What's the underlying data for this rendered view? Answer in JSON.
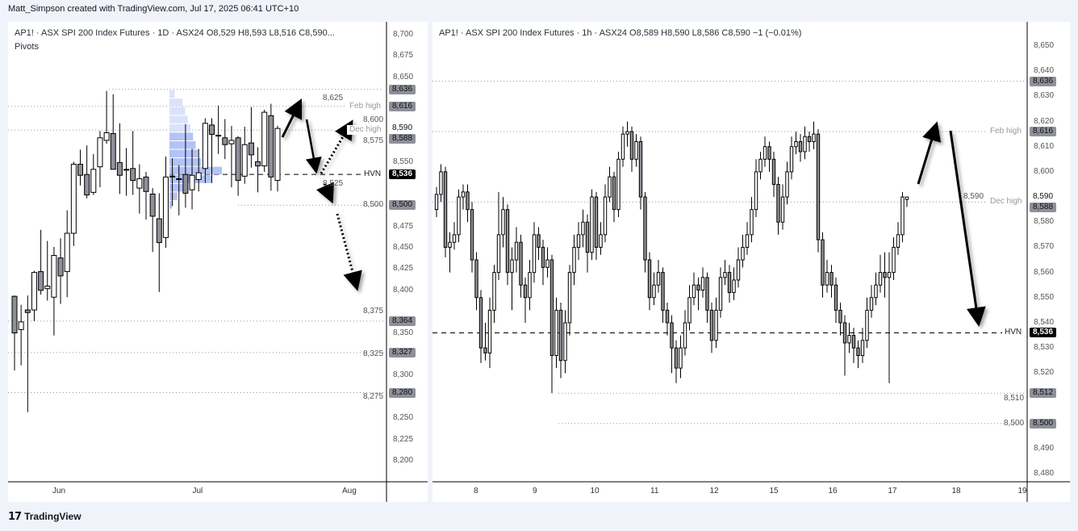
{
  "credit": "Matt_Simpson created with TradingView.com, Jul 17, 2025 06:41 UTC+10",
  "footer": {
    "brand": "TradingView",
    "logo_icon": "tradingview-logo-icon"
  },
  "colors": {
    "up_fill": "#ffffff",
    "down_fill": "#8e9099",
    "candle_border": "#000000",
    "profile_light": "#d6e0fb",
    "profile_dark": "#aabdf5",
    "level_line": "#9598a1",
    "tag_gray": "#8e9099",
    "tag_black": "#000000"
  },
  "chart_data": [
    {
      "type": "candlestick",
      "legend": "AP1! · ASX SPI 200 Index Futures · 1D · ASX24  O8,529  H8,593  L8,516  C8,590...",
      "indicator": "Pivots",
      "ylim": [
        8200,
        8700
      ],
      "yticks": [
        8200,
        8225,
        8250,
        8275,
        8300,
        8325,
        8350,
        8375,
        8400,
        8425,
        8450,
        8475,
        8500,
        8525,
        8550,
        8575,
        8600,
        8625,
        8650,
        8675,
        8700
      ],
      "xticks": [
        "Jun",
        "Jul",
        "Aug"
      ],
      "candles": [
        [
          8393,
          8394,
          8306,
          8350
        ],
        [
          8354,
          8383,
          8312,
          8363
        ],
        [
          8377,
          8394,
          8257,
          8374
        ],
        [
          8377,
          8423,
          8364,
          8421
        ],
        [
          8422,
          8471,
          8395,
          8400
        ],
        [
          8402,
          8458,
          8388,
          8405
        ],
        [
          8392,
          8451,
          8347,
          8441
        ],
        [
          8438,
          8461,
          8384,
          8417
        ],
        [
          8422,
          8494,
          8392,
          8467
        ],
        [
          8467,
          8551,
          8452,
          8548
        ],
        [
          8548,
          8565,
          8523,
          8535
        ],
        [
          8536,
          8570,
          8508,
          8512
        ],
        [
          8515,
          8560,
          8512,
          8542
        ],
        [
          8545,
          8587,
          8521,
          8579
        ],
        [
          8576,
          8634,
          8572,
          8585
        ],
        [
          8584,
          8630,
          8542,
          8542
        ],
        [
          8550,
          8596,
          8513,
          8535
        ],
        [
          8542,
          8567,
          8511,
          8542
        ],
        [
          8543,
          8587,
          8512,
          8529
        ],
        [
          8520,
          8548,
          8490,
          8531
        ],
        [
          8533,
          8539,
          8483,
          8516
        ],
        [
          8513,
          8520,
          8445,
          8487
        ],
        [
          8484,
          8514,
          8398,
          8456
        ],
        [
          8462,
          8557,
          8450,
          8533
        ],
        [
          8534,
          8555,
          8499,
          8534
        ],
        [
          8531,
          8547,
          8488,
          8531
        ],
        [
          8536,
          8595,
          8497,
          8514
        ],
        [
          8518,
          8566,
          8495,
          8535
        ],
        [
          8530,
          8566,
          8516,
          8538
        ],
        [
          8543,
          8602,
          8526,
          8596
        ],
        [
          8594,
          8602,
          8526,
          8583
        ],
        [
          8582,
          8617,
          8560,
          8582
        ],
        [
          8579,
          8601,
          8554,
          8571
        ],
        [
          8572,
          8593,
          8521,
          8576
        ],
        [
          8579,
          8581,
          8511,
          8529
        ],
        [
          8534,
          8592,
          8525,
          8571
        ],
        [
          8573,
          8615,
          8544,
          8559
        ],
        [
          8551,
          8568,
          8515,
          8546
        ],
        [
          8546,
          8612,
          8539,
          8609
        ],
        [
          8605,
          8619,
          8517,
          8533
        ],
        [
          8529,
          8593,
          8516,
          8590
        ]
      ],
      "volume_profile": {
        "prices": [
          8630,
          8620,
          8610,
          8600,
          8590,
          8580,
          8570,
          8560,
          8550,
          8540,
          8530,
          8520,
          8510,
          8500
        ],
        "relative_volume": [
          0.1,
          0.25,
          0.3,
          0.35,
          0.4,
          0.45,
          0.5,
          0.55,
          0.6,
          1.0,
          0.8,
          0.3,
          0.15,
          0.05
        ]
      },
      "levels": [
        {
          "price": 8636,
          "tag": "8,636",
          "style": "dotted",
          "tag_style": "gray"
        },
        {
          "price": 8616,
          "tag": "8,616",
          "label": "Feb high",
          "style": "dotted",
          "tag_style": "gray"
        },
        {
          "price": 8588,
          "tag": "8,588",
          "label": "Dec high",
          "style": "dotted",
          "tag_style": "gray"
        },
        {
          "price": 8536,
          "tag": "8,536",
          "label": "HVN",
          "style": "dashed",
          "tag_style": "black"
        },
        {
          "price": 8500,
          "tag": "8,500",
          "style": "dotted",
          "tag_style": "gray"
        },
        {
          "price": 8364,
          "tag": "8,364",
          "style": "dotted",
          "tag_style": "gray"
        },
        {
          "price": 8327,
          "tag": "8,327",
          "style": "dotted",
          "tag_style": "gray"
        },
        {
          "price": 8280,
          "tag": "8,280",
          "style": "dotted",
          "tag_style": "gray"
        }
      ],
      "last_price": {
        "price": 8590,
        "tag": "8,590"
      }
    },
    {
      "type": "candlestick",
      "legend": "AP1! · ASX SPI 200 Index Futures · 1h · ASX24  O8,589  H8,590  L8,586  C8,590  −1 (−0.01%)",
      "ylim": [
        8475,
        8655
      ],
      "yticks": [
        8480,
        8490,
        8500,
        8510,
        8520,
        8530,
        8540,
        8550,
        8560,
        8570,
        8580,
        8590,
        8600,
        8610,
        8620,
        8630,
        8640,
        8650
      ],
      "xticks": [
        "8",
        "9",
        "10",
        "11",
        "12",
        "15",
        "16",
        "17",
        "18",
        "19"
      ],
      "candles": [
        [
          8585,
          8594,
          8582,
          8591
        ],
        [
          8591,
          8603,
          8588,
          8600
        ],
        [
          8600,
          8602,
          8566,
          8570
        ],
        [
          8570,
          8576,
          8560,
          8572
        ],
        [
          8572,
          8580,
          8569,
          8575
        ],
        [
          8575,
          8593,
          8572,
          8590
        ],
        [
          8590,
          8595,
          8585,
          8592
        ],
        [
          8592,
          8595,
          8580,
          8585
        ],
        [
          8585,
          8588,
          8560,
          8565
        ],
        [
          8565,
          8568,
          8545,
          8550
        ],
        [
          8550,
          8553,
          8524,
          8530
        ],
        [
          8530,
          8540,
          8525,
          8528
        ],
        [
          8528,
          8550,
          8522,
          8545
        ],
        [
          8545,
          8563,
          8540,
          8560
        ],
        [
          8560,
          8592,
          8557,
          8575
        ],
        [
          8575,
          8590,
          8570,
          8585
        ],
        [
          8585,
          8587,
          8555,
          8560
        ],
        [
          8560,
          8570,
          8545,
          8565
        ],
        [
          8565,
          8578,
          8560,
          8572
        ],
        [
          8572,
          8575,
          8550,
          8555
        ],
        [
          8555,
          8558,
          8540,
          8550
        ],
        [
          8550,
          8565,
          8545,
          8560
        ],
        [
          8560,
          8580,
          8556,
          8575
        ],
        [
          8575,
          8578,
          8565,
          8570
        ],
        [
          8570,
          8573,
          8555,
          8562
        ],
        [
          8562,
          8570,
          8558,
          8565
        ],
        [
          8565,
          8567,
          8512,
          8527
        ],
        [
          8527,
          8550,
          8522,
          8545
        ],
        [
          8545,
          8548,
          8518,
          8525
        ],
        [
          8525,
          8545,
          8520,
          8540
        ],
        [
          8540,
          8563,
          8535,
          8560
        ],
        [
          8560,
          8575,
          8555,
          8570
        ],
        [
          8570,
          8580,
          8565,
          8575
        ],
        [
          8575,
          8585,
          8570,
          8580
        ],
        [
          8580,
          8583,
          8560,
          8568
        ],
        [
          8568,
          8593,
          8565,
          8590
        ],
        [
          8590,
          8592,
          8565,
          8570
        ],
        [
          8570,
          8580,
          8567,
          8575
        ],
        [
          8575,
          8595,
          8572,
          8590
        ],
        [
          8590,
          8602,
          8588,
          8598
        ],
        [
          8598,
          8600,
          8580,
          8585
        ],
        [
          8585,
          8608,
          8582,
          8605
        ],
        [
          8605,
          8618,
          8602,
          8615
        ],
        [
          8615,
          8620,
          8610,
          8616
        ],
        [
          8616,
          8618,
          8600,
          8605
        ],
        [
          8605,
          8615,
          8602,
          8612
        ],
        [
          8612,
          8614,
          8585,
          8590
        ],
        [
          8590,
          8592,
          8560,
          8565
        ],
        [
          8565,
          8568,
          8545,
          8550
        ],
        [
          8550,
          8560,
          8547,
          8555
        ],
        [
          8555,
          8565,
          8552,
          8560
        ],
        [
          8560,
          8562,
          8540,
          8545
        ],
        [
          8545,
          8548,
          8535,
          8540
        ],
        [
          8540,
          8543,
          8520,
          8530
        ],
        [
          8530,
          8533,
          8516,
          8522
        ],
        [
          8522,
          8535,
          8518,
          8530
        ],
        [
          8530,
          8545,
          8527,
          8540
        ],
        [
          8540,
          8555,
          8537,
          8550
        ],
        [
          8550,
          8560,
          8547,
          8555
        ],
        [
          8555,
          8558,
          8545,
          8553
        ],
        [
          8553,
          8562,
          8550,
          8558
        ],
        [
          8558,
          8560,
          8540,
          8545
        ],
        [
          8545,
          8548,
          8528,
          8533
        ],
        [
          8533,
          8550,
          8530,
          8545
        ],
        [
          8545,
          8562,
          8542,
          8558
        ],
        [
          8558,
          8565,
          8555,
          8560
        ],
        [
          8560,
          8563,
          8548,
          8552
        ],
        [
          8552,
          8562,
          8549,
          8557
        ],
        [
          8557,
          8570,
          8554,
          8565
        ],
        [
          8565,
          8575,
          8562,
          8570
        ],
        [
          8570,
          8580,
          8567,
          8575
        ],
        [
          8575,
          8590,
          8572,
          8585
        ],
        [
          8585,
          8605,
          8582,
          8600
        ],
        [
          8600,
          8608,
          8597,
          8605
        ],
        [
          8605,
          8614,
          8602,
          8610
        ],
        [
          8610,
          8612,
          8600,
          8605
        ],
        [
          8605,
          8608,
          8590,
          8595
        ],
        [
          8595,
          8598,
          8575,
          8580
        ],
        [
          8580,
          8595,
          8577,
          8590
        ],
        [
          8590,
          8604,
          8587,
          8600
        ],
        [
          8600,
          8614,
          8597,
          8610
        ],
        [
          8610,
          8616,
          8607,
          8612
        ],
        [
          8612,
          8615,
          8604,
          8608
        ],
        [
          8608,
          8618,
          8605,
          8614
        ],
        [
          8614,
          8616,
          8608,
          8612
        ],
        [
          8612,
          8620,
          8609,
          8615
        ],
        [
          8615,
          8617,
          8568,
          8573
        ],
        [
          8573,
          8576,
          8550,
          8555
        ],
        [
          8555,
          8565,
          8552,
          8560
        ],
        [
          8560,
          8563,
          8550,
          8555
        ],
        [
          8555,
          8558,
          8540,
          8545
        ],
        [
          8545,
          8548,
          8535,
          8540
        ],
        [
          8540,
          8543,
          8519,
          8532
        ],
        [
          8532,
          8540,
          8528,
          8535
        ],
        [
          8535,
          8538,
          8524,
          8530
        ],
        [
          8530,
          8533,
          8522,
          8527
        ],
        [
          8527,
          8538,
          8524,
          8533
        ],
        [
          8533,
          8550,
          8530,
          8545
        ],
        [
          8545,
          8555,
          8542,
          8550
        ],
        [
          8550,
          8560,
          8547,
          8555
        ],
        [
          8555,
          8567,
          8552,
          8560
        ],
        [
          8560,
          8568,
          8550,
          8558
        ],
        [
          8558,
          8568,
          8516,
          8560
        ],
        [
          8560,
          8574,
          8557,
          8570
        ],
        [
          8570,
          8580,
          8567,
          8575
        ],
        [
          8575,
          8592,
          8572,
          8590
        ],
        [
          8589,
          8590,
          8586,
          8590
        ]
      ],
      "levels": [
        {
          "price": 8636,
          "tag": "8,636",
          "style": "dotted",
          "tag_style": "gray"
        },
        {
          "price": 8616,
          "tag": "8,616",
          "label": "Feb high",
          "style": "dotted",
          "tag_style": "gray"
        },
        {
          "price": 8588,
          "tag": "8,588",
          "label": "Dec high",
          "style": "dotted",
          "tag_style": "gray"
        },
        {
          "price": 8536,
          "tag": "8,536",
          "label": "HVN",
          "style": "dashed",
          "tag_style": "black"
        },
        {
          "price": 8512,
          "tag": "8,512",
          "style": "dotted",
          "tag_style": "gray"
        },
        {
          "price": 8500,
          "tag": "8,500",
          "style": "dotted",
          "tag_style": "gray"
        }
      ],
      "last_price": {
        "price": 8590,
        "tag": "8,590"
      }
    }
  ]
}
